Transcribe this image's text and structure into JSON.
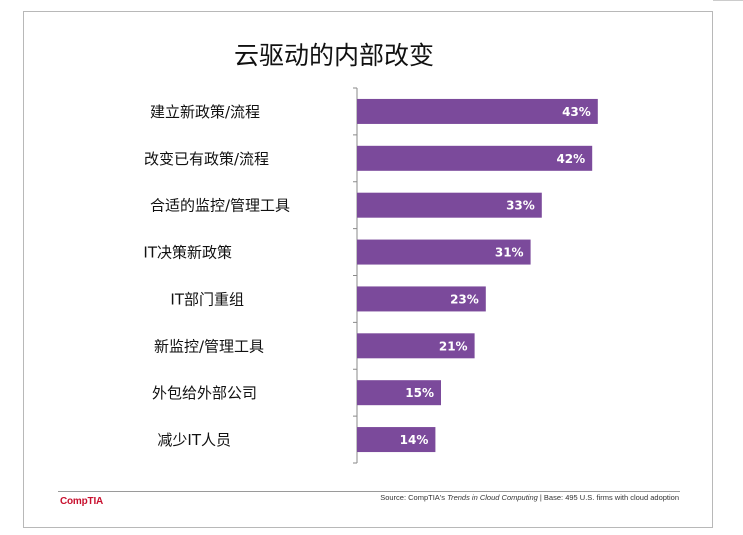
{
  "chart_data": {
    "type": "bar",
    "orientation": "horizontal",
    "title": "云驱动的内部改变",
    "categories": [
      "建立新政策/流程",
      "改变已有政策/流程",
      "合适的监控/管理工具",
      "IT决策新政策",
      "IT部门重组",
      "新监控/管理工具",
      "外包给外部公司",
      "减少IT人员"
    ],
    "values": [
      43,
      42,
      33,
      31,
      23,
      21,
      15,
      14
    ],
    "data_labels": [
      "43%",
      "42%",
      "33%",
      "31%",
      "23%",
      "21%",
      "15%",
      "14%"
    ],
    "xlim": [
      0,
      60
    ],
    "bar_color": "#7b4a9b",
    "grid": false,
    "legend": "none"
  },
  "footer": {
    "logo": "CompTIA",
    "source_prefix": "Source: CompTIA's ",
    "source_title": "Trends in Cloud Computing",
    "source_suffix": " | Base: 495 U.S. firms with cloud adoption"
  }
}
